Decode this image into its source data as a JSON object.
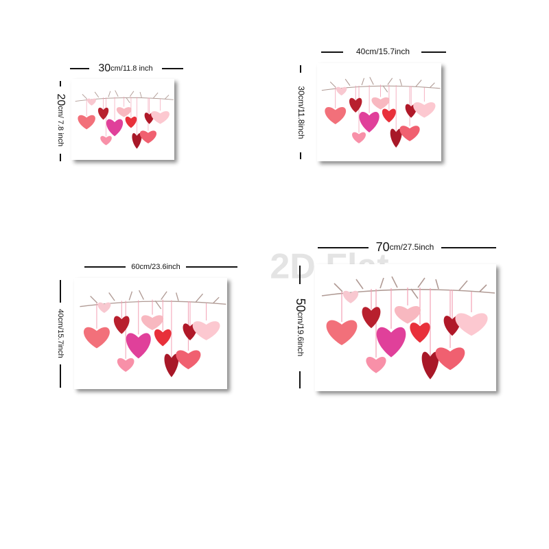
{
  "watermark": "2D Flat",
  "panels": [
    {
      "width": {
        "number": "30",
        "unit": "cm/11.8 inch"
      },
      "height": {
        "number": "20",
        "unit": "cm/ 7.8 inch"
      }
    },
    {
      "width": {
        "text": "40cm/15.7inch"
      },
      "height": {
        "text": "30cm/11.8inch"
      }
    },
    {
      "width": {
        "text": "60cm/23.6inch"
      },
      "height": {
        "text": "40cm/15.7inch"
      }
    },
    {
      "width": {
        "number": "70",
        "unit": "cm/27.5inch"
      },
      "height": {
        "number": "50",
        "unit": "cm/19.6inch"
      }
    }
  ]
}
